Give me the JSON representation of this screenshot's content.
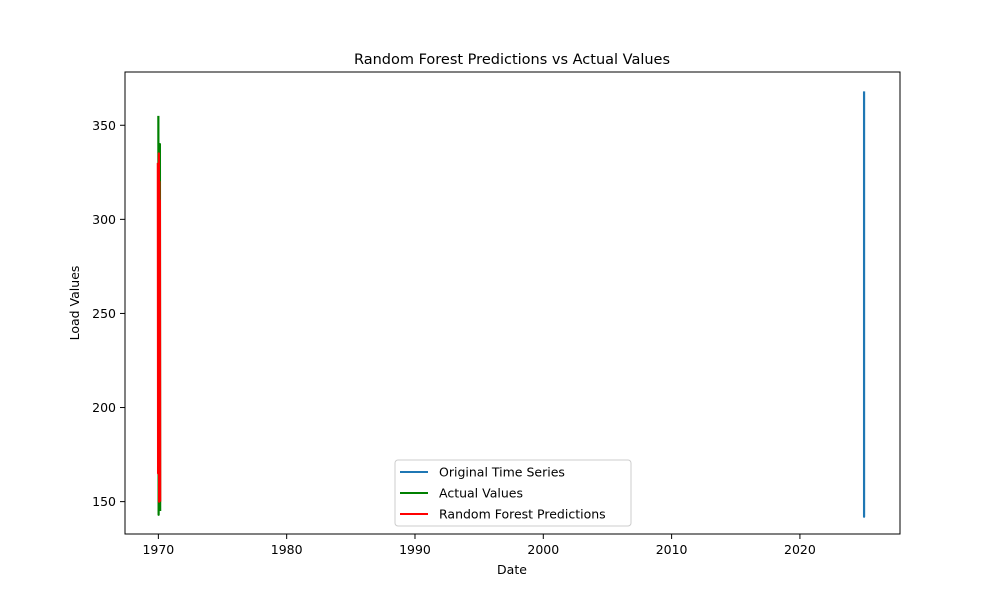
{
  "chart_data": {
    "type": "line",
    "title": "Random Forest Predictions vs Actual Values",
    "xlabel": "Date",
    "ylabel": "Load Values",
    "xlim": [
      1967.4,
      2027.8
    ],
    "ylim": [
      132.8,
      378.3
    ],
    "x_ticks": [
      {
        "value": 1970,
        "label": "1970"
      },
      {
        "value": 1980,
        "label": "1980"
      },
      {
        "value": 1990,
        "label": "1990"
      },
      {
        "value": 2000,
        "label": "2000"
      },
      {
        "value": 2010,
        "label": "2010"
      },
      {
        "value": 2020,
        "label": "2020"
      }
    ],
    "y_ticks": [
      {
        "value": 150,
        "label": "150"
      },
      {
        "value": 200,
        "label": "200"
      },
      {
        "value": 250,
        "label": "250"
      },
      {
        "value": 300,
        "label": "300"
      },
      {
        "value": 350,
        "label": "350"
      }
    ],
    "grid": false,
    "legend_position": "bottom-center",
    "series": [
      {
        "name": "Original Time Series",
        "color": "#1f77b4",
        "x": [
          2025.0,
          2025.0,
          2025.0,
          2025.0,
          2025.0,
          2025.0,
          2025.0,
          2025.0
        ],
        "y": [
          368,
          142,
          340,
          265,
          300,
          160,
          330,
          150
        ]
      },
      {
        "name": "Actual Values",
        "color": "#008000",
        "x": [
          1970.0,
          1970.02,
          1970.04,
          1970.06,
          1970.08,
          1970.1,
          1970.12,
          1970.14
        ],
        "y": [
          355,
          143,
          330,
          160,
          310,
          150,
          340,
          145
        ]
      },
      {
        "name": "Random Forest Predictions",
        "color": "#ff0000",
        "x": [
          1969.96,
          1969.98,
          1970.0,
          1970.02,
          1970.04,
          1970.06,
          1970.08,
          1970.1,
          1970.12,
          1970.14
        ],
        "y": [
          330,
          165,
          325,
          170,
          335,
          150,
          320,
          155,
          310,
          150
        ]
      }
    ]
  }
}
